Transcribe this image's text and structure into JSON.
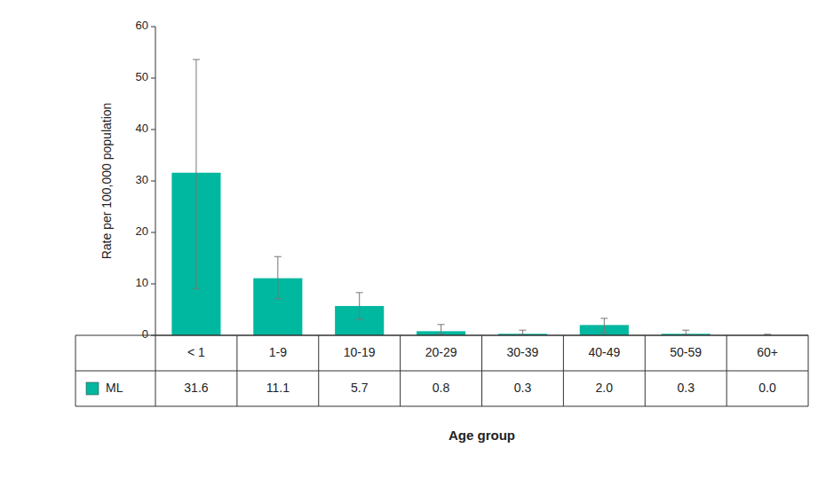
{
  "chart_data": {
    "type": "bar",
    "categories": [
      "< 1",
      "1-9",
      "10-19",
      "20-29",
      "30-39",
      "40-49",
      "50-59",
      "60+"
    ],
    "series": [
      {
        "name": "ML",
        "color": "#00B89F",
        "values": [
          31.6,
          11.1,
          5.7,
          0.8,
          0.3,
          2.0,
          0.3,
          0.0
        ],
        "value_labels": [
          "31.6",
          "11.1",
          "5.7",
          "0.8",
          "0.3",
          "2.0",
          "0.3",
          "0.0"
        ],
        "error_upper": [
          22.0,
          4.2,
          2.6,
          1.3,
          0.7,
          1.3,
          0.7,
          0.2
        ],
        "error_lower": [
          22.5,
          4.0,
          2.6,
          0.6,
          0.2,
          1.5,
          0.2,
          0.0
        ]
      }
    ],
    "ylabel": "Rate per 100,000 population",
    "xlabel": "Age group",
    "ylim": [
      0,
      60
    ],
    "yticks": [
      0,
      10,
      20,
      30,
      40,
      50,
      60
    ],
    "grid": false
  }
}
